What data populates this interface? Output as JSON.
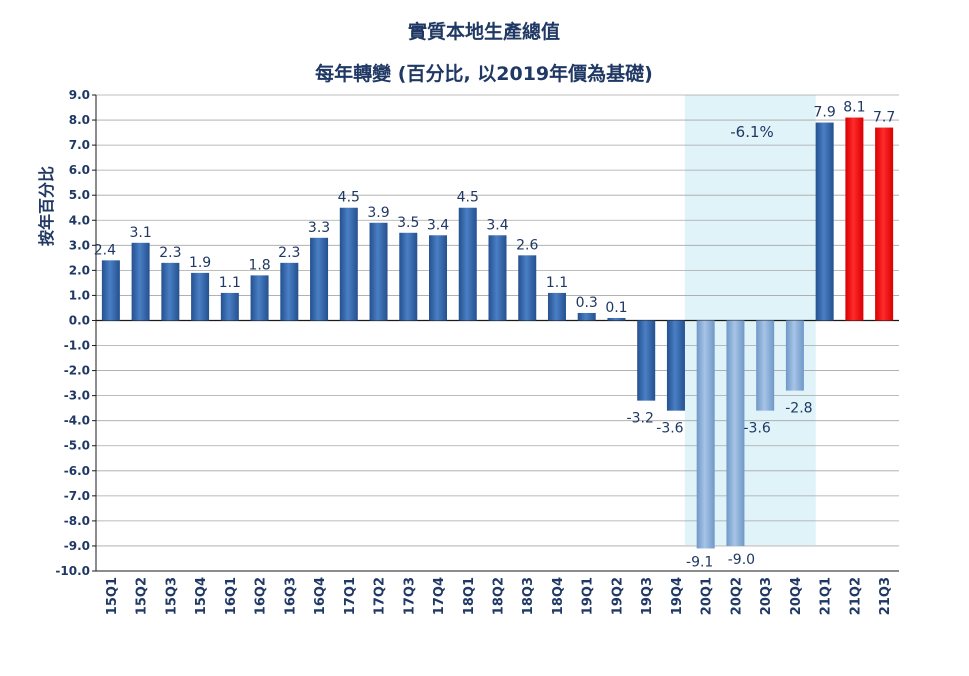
{
  "chart_data": {
    "type": "bar",
    "title": "實質本地生產總值",
    "subtitle": "每年轉變 (百分比, 以2019年價為基礎)",
    "ylabel": "按年百分比",
    "xlabel": "",
    "ylim": [
      -10.0,
      9.0
    ],
    "ytick_step": 1.0,
    "grid": true,
    "categories": [
      "15Q1",
      "15Q2",
      "15Q3",
      "15Q4",
      "16Q1",
      "16Q2",
      "16Q3",
      "16Q4",
      "17Q1",
      "17Q2",
      "17Q3",
      "17Q4",
      "18Q1",
      "18Q2",
      "18Q3",
      "18Q4",
      "19Q1",
      "19Q2",
      "19Q3",
      "19Q4",
      "20Q1",
      "20Q2",
      "20Q3",
      "20Q4",
      "21Q1",
      "21Q2",
      "21Q3"
    ],
    "values": [
      2.4,
      3.1,
      2.3,
      1.9,
      1.1,
      1.8,
      2.3,
      3.3,
      4.5,
      3.9,
      3.5,
      3.4,
      4.5,
      3.4,
      2.6,
      1.1,
      0.3,
      0.1,
      -3.2,
      -3.6,
      -9.1,
      -9.0,
      -3.6,
      -2.8,
      7.9,
      8.1,
      7.7
    ],
    "labels": [
      "2.4",
      "3.1",
      "2.3",
      "1.9",
      "1.1",
      "1.8",
      "2.3",
      "3.3",
      "4.5",
      "3.9",
      "3.5",
      "3.4",
      "4.5",
      "3.4",
      "2.6",
      "1.1",
      "0.3",
      "0.1",
      "-3.2",
      "-3.6",
      "-9.1",
      "-9.0",
      "-3.6",
      "-2.8",
      "7.9",
      "8.1",
      "7.7"
    ],
    "bar_colors": {
      "default": "#2e5fa3",
      "highlight_2020": "#7fa8d6",
      "recent": "#ff0000"
    },
    "highlight_range": [
      "20Q1",
      "20Q4"
    ],
    "highlight_annotation": "-6.1%",
    "highlight_shade": "#dff3f8",
    "recent_categories": [
      "21Q2",
      "21Q3"
    ]
  }
}
